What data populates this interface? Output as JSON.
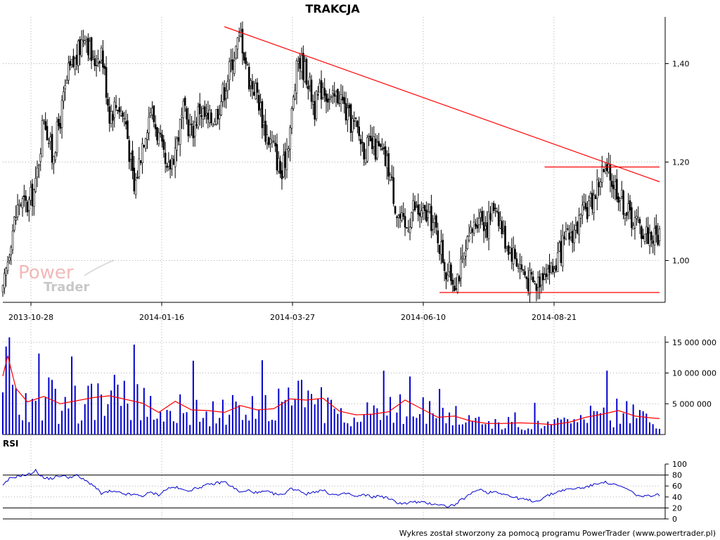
{
  "chart_data": {
    "type": "candlestick",
    "title": "TRAKCJA",
    "footer": "Wykres został stworzony za pomocą programu PowerTrader (www.powertrader.pl)",
    "watermark": {
      "line1": "Power",
      "line2": "Trader"
    },
    "x_tick_labels": [
      "2013-10-28",
      "2014-01-16",
      "2014-03-27",
      "2014-06-10",
      "2014-08-21"
    ],
    "price": {
      "y_ticks": [
        "1,40",
        "1,20",
        "1,00"
      ],
      "y_tick_values": [
        1.4,
        1.2,
        1.0
      ],
      "ylim": [
        0.915,
        1.495
      ],
      "close_series": [
        [
          0,
          0.93
        ],
        [
          5,
          1.05
        ],
        [
          10,
          1.12
        ],
        [
          15,
          1.11
        ],
        [
          20,
          1.15
        ],
        [
          25,
          1.3
        ],
        [
          30,
          1.21
        ],
        [
          35,
          1.29
        ],
        [
          40,
          1.38
        ],
        [
          45,
          1.41
        ],
        [
          50,
          1.47
        ],
        [
          55,
          1.4
        ],
        [
          60,
          1.43
        ],
        [
          65,
          1.3
        ],
        [
          70,
          1.32
        ],
        [
          75,
          1.28
        ],
        [
          80,
          1.14
        ],
        [
          85,
          1.24
        ],
        [
          90,
          1.31
        ],
        [
          95,
          1.25
        ],
        [
          100,
          1.17
        ],
        [
          105,
          1.23
        ],
        [
          110,
          1.3
        ],
        [
          115,
          1.26
        ],
        [
          120,
          1.31
        ],
        [
          125,
          1.28
        ],
        [
          130,
          1.3
        ],
        [
          135,
          1.35
        ],
        [
          140,
          1.41
        ],
        [
          145,
          1.46
        ],
        [
          150,
          1.37
        ],
        [
          155,
          1.34
        ],
        [
          160,
          1.26
        ],
        [
          165,
          1.23
        ],
        [
          170,
          1.17
        ],
        [
          175,
          1.27
        ],
        [
          180,
          1.41
        ],
        [
          185,
          1.38
        ],
        [
          190,
          1.31
        ],
        [
          195,
          1.36
        ],
        [
          200,
          1.32
        ],
        [
          205,
          1.34
        ],
        [
          210,
          1.29
        ],
        [
          215,
          1.27
        ],
        [
          220,
          1.23
        ],
        [
          225,
          1.23
        ],
        [
          230,
          1.22
        ],
        [
          235,
          1.19
        ],
        [
          240,
          1.1
        ],
        [
          245,
          1.06
        ],
        [
          250,
          1.11
        ],
        [
          255,
          1.09
        ],
        [
          260,
          1.09
        ],
        [
          265,
          1.05
        ],
        [
          270,
          0.98
        ],
        [
          275,
          0.96
        ],
        [
          280,
          0.99
        ],
        [
          285,
          1.05
        ],
        [
          290,
          1.1
        ],
        [
          295,
          1.07
        ],
        [
          300,
          1.12
        ],
        [
          305,
          1.05
        ],
        [
          310,
          1.02
        ],
        [
          315,
          0.99
        ],
        [
          320,
          0.96
        ],
        [
          325,
          0.95
        ],
        [
          330,
          0.99
        ],
        [
          335,
          0.98
        ],
        [
          340,
          1.02
        ],
        [
          345,
          1.05
        ],
        [
          350,
          1.07
        ],
        [
          355,
          1.1
        ],
        [
          360,
          1.13
        ],
        [
          365,
          1.18
        ],
        [
          370,
          1.17
        ],
        [
          375,
          1.14
        ],
        [
          380,
          1.1
        ],
        [
          385,
          1.08
        ],
        [
          390,
          1.06
        ],
        [
          395,
          1.05
        ]
      ],
      "resistance_trendline": [
        [
          135,
          1.475
        ],
        [
          400,
          1.16
        ]
      ],
      "horizontal_lines": [
        {
          "value": 1.19,
          "x_start": 330,
          "x_end": 400
        },
        {
          "value": 0.935,
          "x_start": 266,
          "x_end": 400
        }
      ]
    },
    "volume": {
      "y_ticks": [
        "15 000 000",
        "10 000 000",
        "5 000 000"
      ],
      "y_tick_values": [
        15000000,
        10000000,
        5000000
      ],
      "ylim": [
        0,
        16000000
      ],
      "series_color": "#0000cc",
      "moving_average_color": "#ff0000",
      "moving_average": [
        [
          0,
          9500000
        ],
        [
          3,
          12800000
        ],
        [
          8,
          7500000
        ],
        [
          15,
          5300000
        ],
        [
          25,
          6200000
        ],
        [
          35,
          5000000
        ],
        [
          45,
          5500000
        ],
        [
          55,
          6000000
        ],
        [
          65,
          6300000
        ],
        [
          75,
          5700000
        ],
        [
          85,
          5100000
        ],
        [
          95,
          3600000
        ],
        [
          105,
          5400000
        ],
        [
          115,
          4000000
        ],
        [
          125,
          3900000
        ],
        [
          135,
          3600000
        ],
        [
          145,
          4700000
        ],
        [
          155,
          4000000
        ],
        [
          165,
          4200000
        ],
        [
          175,
          5800000
        ],
        [
          185,
          5600000
        ],
        [
          195,
          5900000
        ],
        [
          205,
          3800000
        ],
        [
          215,
          3200000
        ],
        [
          225,
          3300000
        ],
        [
          235,
          3700000
        ],
        [
          245,
          5600000
        ],
        [
          255,
          4200000
        ],
        [
          265,
          2800000
        ],
        [
          275,
          3000000
        ],
        [
          285,
          2200000
        ],
        [
          295,
          1800000
        ],
        [
          305,
          1800000
        ],
        [
          315,
          1900000
        ],
        [
          325,
          1800000
        ],
        [
          335,
          1600000
        ],
        [
          345,
          2000000
        ],
        [
          355,
          2800000
        ],
        [
          365,
          3300000
        ],
        [
          375,
          3900000
        ],
        [
          385,
          3000000
        ],
        [
          395,
          2700000
        ],
        [
          400,
          2600000
        ]
      ]
    },
    "rsi": {
      "label": "RSI",
      "y_ticks": [
        "100",
        "80",
        "60",
        "40",
        "20",
        "0"
      ],
      "y_tick_values": [
        100,
        80,
        60,
        40,
        20,
        0
      ],
      "ylim": [
        0,
        100
      ],
      "reference_lines": [
        80,
        20
      ],
      "series_color": "#0000cc",
      "series": [
        [
          0,
          60
        ],
        [
          4,
          73
        ],
        [
          10,
          79
        ],
        [
          15,
          80
        ],
        [
          20,
          88
        ],
        [
          25,
          74
        ],
        [
          30,
          74
        ],
        [
          35,
          79
        ],
        [
          40,
          76
        ],
        [
          45,
          79
        ],
        [
          50,
          70
        ],
        [
          55,
          62
        ],
        [
          60,
          46
        ],
        [
          65,
          50
        ],
        [
          70,
          48
        ],
        [
          75,
          45
        ],
        [
          80,
          44
        ],
        [
          85,
          42
        ],
        [
          90,
          48
        ],
        [
          95,
          44
        ],
        [
          100,
          55
        ],
        [
          105,
          58
        ],
        [
          110,
          52
        ],
        [
          115,
          53
        ],
        [
          120,
          58
        ],
        [
          125,
          62
        ],
        [
          130,
          65
        ],
        [
          135,
          68
        ],
        [
          140,
          58
        ],
        [
          145,
          48
        ],
        [
          150,
          52
        ],
        [
          155,
          47
        ],
        [
          160,
          50
        ],
        [
          165,
          46
        ],
        [
          170,
          43
        ],
        [
          175,
          55
        ],
        [
          180,
          53
        ],
        [
          185,
          45
        ],
        [
          190,
          50
        ],
        [
          195,
          52
        ],
        [
          200,
          45
        ],
        [
          205,
          43
        ],
        [
          210,
          47
        ],
        [
          215,
          40
        ],
        [
          220,
          44
        ],
        [
          225,
          40
        ],
        [
          230,
          42
        ],
        [
          235,
          37
        ],
        [
          240,
          30
        ],
        [
          245,
          28
        ],
        [
          250,
          31
        ],
        [
          255,
          30
        ],
        [
          260,
          28
        ],
        [
          265,
          27
        ],
        [
          270,
          23
        ],
        [
          275,
          25
        ],
        [
          280,
          36
        ],
        [
          285,
          45
        ],
        [
          290,
          55
        ],
        [
          295,
          48
        ],
        [
          300,
          50
        ],
        [
          305,
          46
        ],
        [
          310,
          40
        ],
        [
          315,
          37
        ],
        [
          320,
          34
        ],
        [
          325,
          32
        ],
        [
          330,
          40
        ],
        [
          335,
          46
        ],
        [
          340,
          52
        ],
        [
          345,
          54
        ],
        [
          350,
          56
        ],
        [
          355,
          58
        ],
        [
          360,
          62
        ],
        [
          365,
          68
        ],
        [
          370,
          64
        ],
        [
          375,
          60
        ],
        [
          380,
          55
        ],
        [
          385,
          45
        ],
        [
          390,
          40
        ],
        [
          395,
          43
        ],
        [
          400,
          44
        ]
      ]
    }
  }
}
